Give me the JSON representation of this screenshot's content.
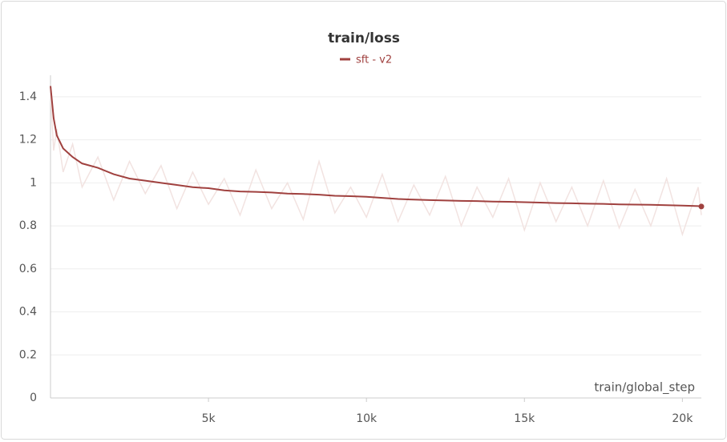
{
  "chart_data": {
    "type": "line",
    "title": "train/loss",
    "x_label": "train/global_step",
    "x": [
      0,
      100,
      200,
      400,
      700,
      1000,
      1500,
      2000,
      2500,
      3000,
      3500,
      4000,
      4500,
      5000,
      5500,
      6000,
      6500,
      7000,
      7500,
      8000,
      8500,
      9000,
      9500,
      10000,
      10500,
      11000,
      11500,
      12000,
      12500,
      13000,
      13500,
      14000,
      14500,
      15000,
      15500,
      16000,
      16500,
      17000,
      17500,
      18000,
      18500,
      19000,
      19500,
      20000,
      20500,
      20600
    ],
    "series": [
      {
        "name": "sft - v2",
        "color": "#a0413f",
        "values": [
          1.45,
          1.3,
          1.22,
          1.16,
          1.12,
          1.09,
          1.07,
          1.04,
          1.02,
          1.01,
          1.0,
          0.99,
          0.98,
          0.975,
          0.965,
          0.96,
          0.958,
          0.955,
          0.95,
          0.948,
          0.945,
          0.94,
          0.938,
          0.935,
          0.93,
          0.925,
          0.922,
          0.92,
          0.918,
          0.916,
          0.915,
          0.913,
          0.912,
          0.91,
          0.908,
          0.906,
          0.905,
          0.903,
          0.902,
          0.9,
          0.899,
          0.898,
          0.896,
          0.894,
          0.892,
          0.89
        ]
      },
      {
        "color": "#f2e3e1",
        "values": [
          1.42,
          1.15,
          1.25,
          1.05,
          1.18,
          0.98,
          1.12,
          0.92,
          1.1,
          0.95,
          1.08,
          0.88,
          1.05,
          0.9,
          1.02,
          0.85,
          1.06,
          0.88,
          1.0,
          0.83,
          1.1,
          0.86,
          0.98,
          0.84,
          1.04,
          0.82,
          0.99,
          0.85,
          1.03,
          0.8,
          0.98,
          0.84,
          1.02,
          0.78,
          1.0,
          0.82,
          0.98,
          0.8,
          1.01,
          0.79,
          0.97,
          0.8,
          1.02,
          0.76,
          0.98,
          0.85
        ]
      }
    ],
    "xlim": [
      0,
      20600
    ],
    "ylim": [
      0,
      1.5
    ],
    "xticks": [
      {
        "value": 5000,
        "label": "5k"
      },
      {
        "value": 10000,
        "label": "10k"
      },
      {
        "value": 15000,
        "label": "15k"
      },
      {
        "value": 20000,
        "label": "20k"
      }
    ],
    "yticks": [
      0,
      0.2,
      0.4,
      0.6,
      0.8,
      1,
      1.2,
      1.4
    ],
    "grid": true
  }
}
